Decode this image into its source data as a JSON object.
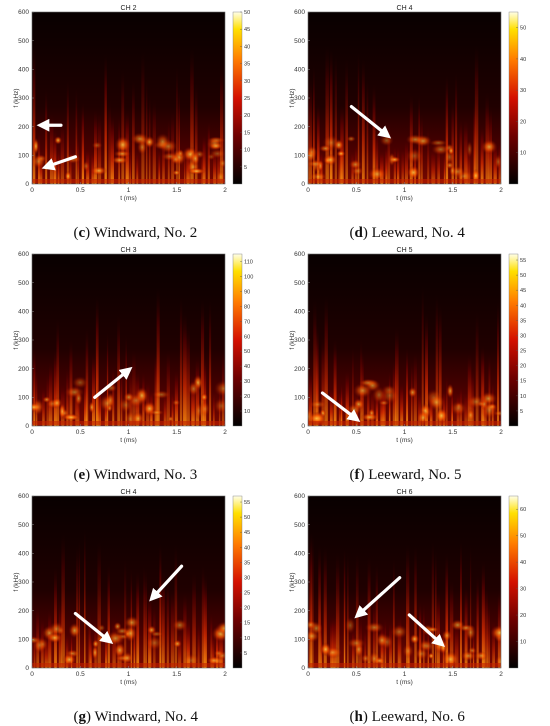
{
  "chart_data": [
    {
      "type": "heatmap",
      "title": "CH 2",
      "caption_letter": "c",
      "caption_text": "Windward, No. 2",
      "xlabel": "t (ms)",
      "ylabel": "f (kHz)",
      "xlim": [
        0,
        2
      ],
      "ylim": [
        0,
        600
      ],
      "x_ticks": [
        "0",
        "0.5",
        "1",
        "1.5",
        "2"
      ],
      "y_ticks": [
        "0",
        "100",
        "200",
        "300",
        "400",
        "500",
        "600"
      ],
      "colorbar_ticks": [
        "5",
        "10",
        "15",
        "20",
        "25",
        "30",
        "35",
        "40",
        "45",
        "50"
      ],
      "colorbar_max": 50,
      "arrows": [
        {
          "from": [
            0.3,
            205
          ],
          "to": [
            0.1,
            205
          ]
        },
        {
          "from": [
            0.45,
            95
          ],
          "to": [
            0.15,
            60
          ]
        }
      ]
    },
    {
      "type": "heatmap",
      "title": "CH 4",
      "caption_letter": "d",
      "caption_text": "Leeward, No. 4",
      "xlabel": "t (ms)",
      "ylabel": "f (kHz)",
      "xlim": [
        0,
        2
      ],
      "ylim": [
        0,
        600
      ],
      "x_ticks": [
        "0",
        "0.5",
        "1",
        "1.5",
        "2"
      ],
      "y_ticks": [
        "0",
        "100",
        "200",
        "300",
        "400",
        "500",
        "600"
      ],
      "colorbar_ticks": [
        "10",
        "20",
        "30",
        "40",
        "50"
      ],
      "colorbar_max": 55,
      "arrows": [
        {
          "from": [
            0.45,
            270
          ],
          "to": [
            0.82,
            170
          ]
        }
      ]
    },
    {
      "type": "heatmap",
      "title": "CH 3",
      "caption_letter": "e",
      "caption_text": "Windward, No. 3",
      "xlabel": "t (ms)",
      "ylabel": "f (kHz)",
      "xlim": [
        0,
        2
      ],
      "ylim": [
        0,
        600
      ],
      "x_ticks": [
        "0",
        "0.5",
        "1",
        "1.5",
        "2"
      ],
      "y_ticks": [
        "0",
        "100",
        "200",
        "300",
        "400",
        "500",
        "600"
      ],
      "colorbar_ticks": [
        "10",
        "20",
        "30",
        "40",
        "50",
        "60",
        "70",
        "80",
        "90",
        "100",
        "110"
      ],
      "colorbar_max": 115,
      "arrows": [
        {
          "from": [
            0.65,
            100
          ],
          "to": [
            1.0,
            195
          ]
        }
      ]
    },
    {
      "type": "heatmap",
      "title": "CH 5",
      "caption_letter": "f",
      "caption_text": "Leeward, No. 5",
      "xlabel": "t (ms)",
      "ylabel": "f (kHz)",
      "xlim": [
        0,
        2
      ],
      "ylim": [
        0,
        600
      ],
      "x_ticks": [
        "0",
        "0.5",
        "1",
        "1.5",
        "2"
      ],
      "y_ticks": [
        "0",
        "100",
        "200",
        "300",
        "400",
        "500",
        "600"
      ],
      "colorbar_ticks": [
        "5",
        "10",
        "15",
        "20",
        "25",
        "30",
        "35",
        "40",
        "45",
        "50",
        "55"
      ],
      "colorbar_max": 57,
      "arrows": [
        {
          "from": [
            0.15,
            115
          ],
          "to": [
            0.5,
            25
          ]
        }
      ]
    },
    {
      "type": "heatmap",
      "title": "CH 4",
      "caption_letter": "g",
      "caption_text": "Windward, No. 4",
      "xlabel": "t (ms)",
      "ylabel": "f (kHz)",
      "xlim": [
        0,
        2
      ],
      "ylim": [
        0,
        600
      ],
      "x_ticks": [
        "0",
        "0.5",
        "1",
        "1.5",
        "2"
      ],
      "y_ticks": [
        "0",
        "100",
        "200",
        "300",
        "400",
        "500",
        "600"
      ],
      "colorbar_ticks": [
        "5",
        "10",
        "15",
        "20",
        "25",
        "30",
        "35",
        "40",
        "45",
        "50",
        "55"
      ],
      "colorbar_max": 57,
      "arrows": [
        {
          "from": [
            0.45,
            190
          ],
          "to": [
            0.8,
            95
          ]
        },
        {
          "from": [
            1.55,
            355
          ],
          "to": [
            1.25,
            245
          ]
        }
      ]
    },
    {
      "type": "heatmap",
      "title": "CH 6",
      "caption_letter": "h",
      "caption_text": "Leeward, No. 6",
      "xlabel": "t (ms)",
      "ylabel": "f (kHz)",
      "xlim": [
        0,
        2
      ],
      "ylim": [
        0,
        600
      ],
      "x_ticks": [
        "0",
        "0.5",
        "1",
        "1.5",
        "2"
      ],
      "y_ticks": [
        "0",
        "100",
        "200",
        "300",
        "400",
        "500",
        "600"
      ],
      "colorbar_ticks": [
        "10",
        "20",
        "30",
        "40",
        "50",
        "60"
      ],
      "colorbar_max": 65,
      "arrows": [
        {
          "from": [
            0.95,
            315
          ],
          "to": [
            0.52,
            185
          ]
        },
        {
          "from": [
            1.05,
            185
          ],
          "to": [
            1.38,
            85
          ]
        }
      ]
    }
  ]
}
